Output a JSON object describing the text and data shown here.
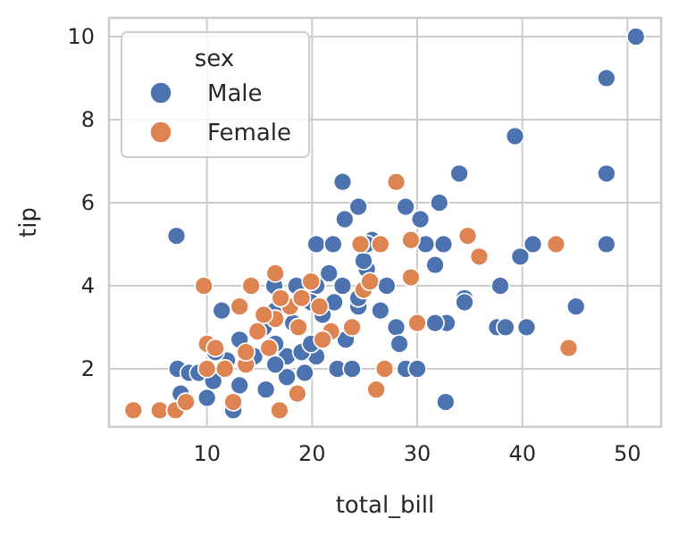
{
  "chart_data": {
    "type": "scatter",
    "xlabel": "total_bill",
    "ylabel": "tip",
    "legend_title": "sex",
    "xlim": [
      0.68,
      53.2
    ],
    "ylim": [
      0.6,
      10.45
    ],
    "xticks": [
      10,
      20,
      30,
      40,
      50
    ],
    "yticks": [
      2,
      4,
      6,
      8,
      10
    ],
    "grid": true,
    "legend": "top left",
    "marker": "circle",
    "series": [
      {
        "name": "Male",
        "color": "#4c72b0",
        "x": [
          50.8,
          48.0,
          39.3,
          48.0,
          48.0,
          34.0,
          22.9,
          32.1,
          28.9,
          24.4,
          23.1,
          30.3,
          7.1,
          20.4,
          22.0,
          25.7,
          32.5,
          30.8,
          41.0,
          39.8,
          31.7,
          34.5,
          34.5,
          37.9,
          45.1,
          37.6,
          38.4,
          40.4,
          32.8,
          31.7,
          32.7,
          11.4,
          16.4,
          18.5,
          20.4,
          22.9,
          27.1,
          25.2,
          24.9,
          21.6,
          24.4,
          26.5,
          28.0,
          28.3,
          28.9,
          30.0,
          22.4,
          23.8,
          20.4,
          17.6,
          15.6,
          13.1,
          12.5,
          10.0,
          7.5,
          7.2,
          8.3,
          11.9,
          13.1,
          15.4,
          17.6,
          19.0,
          19.9,
          21.0,
          23.2,
          16.5,
          10.8,
          9.2,
          14.5,
          16.5,
          19.3,
          10.6,
          16.5,
          18.2,
          19.9,
          22.1,
          24.4,
          25.2
        ],
        "values": [
          10,
          9.0,
          7.6,
          6.7,
          5.0,
          6.7,
          6.5,
          6.0,
          5.9,
          5.9,
          5.6,
          5.6,
          5.2,
          5.0,
          5.0,
          5.1,
          5.0,
          5.0,
          5.0,
          4.7,
          4.5,
          3.7,
          3.6,
          4.0,
          3.5,
          3.0,
          3.0,
          3.0,
          3.1,
          3.1,
          1.2,
          3.4,
          4.0,
          4.0,
          4.0,
          4.0,
          4.0,
          4.4,
          4.6,
          4.3,
          3.5,
          3.4,
          3.0,
          2.6,
          2.0,
          2.0,
          2.0,
          2.0,
          2.3,
          1.8,
          1.5,
          1.6,
          1.0,
          1.3,
          1.4,
          2.0,
          1.9,
          2.2,
          2.7,
          3.0,
          2.3,
          2.4,
          2.6,
          3.3,
          2.7,
          2.6,
          2.4,
          1.9,
          2.3,
          2.1,
          1.9,
          1.7,
          3.4,
          3.1,
          3.6,
          3.6,
          3.7,
          5.0
        ]
      },
      {
        "name": "Female",
        "color": "#dd8452",
        "x": [
          28.0,
          29.4,
          29.4,
          30.0,
          34.8,
          35.9,
          43.2,
          44.4,
          9.7,
          14.2,
          16.5,
          19.9,
          3.0,
          5.5,
          7.0,
          16.9,
          18.6,
          26.1,
          26.9,
          10.0,
          10.0,
          10.8,
          13.1,
          15.9,
          16.5,
          17.9,
          18.7,
          20.7,
          21.8,
          23.8,
          24.9,
          25.5,
          24.6,
          26.5,
          8.0,
          12.5,
          11.7,
          13.7,
          15.4,
          17.0,
          14.8,
          21.0,
          19.0,
          13.7
        ],
        "values": [
          6.5,
          5.1,
          4.2,
          3.1,
          5.2,
          4.7,
          5.0,
          2.5,
          4.0,
          4.0,
          4.3,
          4.1,
          1.0,
          1.0,
          1.0,
          1.0,
          1.4,
          1.5,
          2.0,
          2.0,
          2.6,
          2.5,
          3.5,
          2.5,
          3.2,
          3.5,
          3.0,
          3.5,
          2.9,
          3.0,
          3.9,
          4.1,
          5.0,
          5.0,
          1.2,
          1.2,
          2.0,
          2.1,
          3.3,
          3.7,
          2.9,
          2.7,
          3.7,
          2.4
        ]
      }
    ]
  }
}
